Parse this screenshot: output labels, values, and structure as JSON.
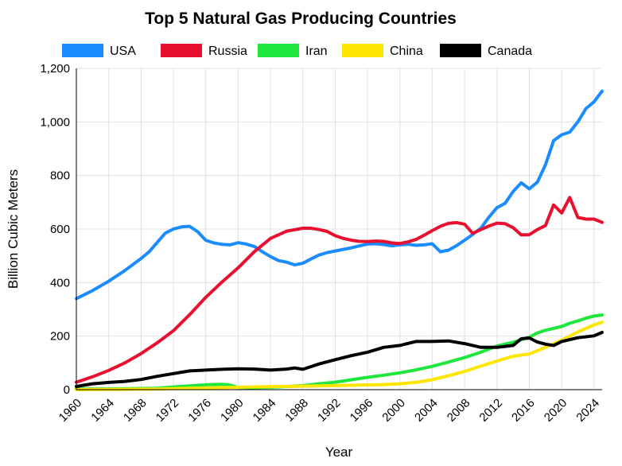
{
  "chart_data": {
    "type": "line",
    "title": "Top 5 Natural Gas Producing Countries",
    "xlabel": "Year",
    "ylabel": "Billion Cubic Meters",
    "xlim": [
      1960,
      2025
    ],
    "ylim": [
      0,
      1200
    ],
    "x_ticks": [
      1960,
      1964,
      1968,
      1972,
      1976,
      1980,
      1984,
      1988,
      1992,
      1996,
      2000,
      2004,
      2008,
      2012,
      2016,
      2020,
      2024
    ],
    "y_ticks": [
      0,
      200,
      400,
      600,
      800,
      1000,
      1200
    ],
    "y_tick_labels": [
      "0",
      "200",
      "400",
      "600",
      "800",
      "1,000",
      "1,200"
    ],
    "grid": true,
    "legend_position": "top",
    "series": [
      {
        "name": "USA",
        "color": "#1a8cff",
        "points": [
          [
            1960,
            340
          ],
          [
            1962,
            370
          ],
          [
            1964,
            405
          ],
          [
            1966,
            445
          ],
          [
            1968,
            490
          ],
          [
            1969,
            515
          ],
          [
            1970,
            550
          ],
          [
            1971,
            585
          ],
          [
            1972,
            600
          ],
          [
            1973,
            608
          ],
          [
            1974,
            610
          ],
          [
            1975,
            590
          ],
          [
            1976,
            558
          ],
          [
            1977,
            548
          ],
          [
            1978,
            543
          ],
          [
            1979,
            541
          ],
          [
            1980,
            549
          ],
          [
            1981,
            544
          ],
          [
            1982,
            535
          ],
          [
            1983,
            515
          ],
          [
            1984,
            497
          ],
          [
            1985,
            482
          ],
          [
            1986,
            476
          ],
          [
            1987,
            466
          ],
          [
            1988,
            472
          ],
          [
            1989,
            488
          ],
          [
            1990,
            503
          ],
          [
            1991,
            512
          ],
          [
            1992,
            518
          ],
          [
            1993,
            524
          ],
          [
            1994,
            530
          ],
          [
            1995,
            537
          ],
          [
            1996,
            544
          ],
          [
            1997,
            545
          ],
          [
            1998,
            542
          ],
          [
            1999,
            537
          ],
          [
            2000,
            541
          ],
          [
            2001,
            543
          ],
          [
            2002,
            539
          ],
          [
            2003,
            541
          ],
          [
            2004,
            545
          ],
          [
            2005,
            515
          ],
          [
            2006,
            521
          ],
          [
            2007,
            538
          ],
          [
            2008,
            558
          ],
          [
            2009,
            580
          ],
          [
            2010,
            603
          ],
          [
            2011,
            644
          ],
          [
            2012,
            680
          ],
          [
            2013,
            696
          ],
          [
            2014,
            740
          ],
          [
            2015,
            773
          ],
          [
            2016,
            750
          ],
          [
            2017,
            775
          ],
          [
            2018,
            840
          ],
          [
            2019,
            930
          ],
          [
            2020,
            952
          ],
          [
            2021,
            962
          ],
          [
            2022,
            1000
          ],
          [
            2023,
            1050
          ],
          [
            2024,
            1075
          ],
          [
            2025,
            1115
          ]
        ]
      },
      {
        "name": "Russia",
        "color": "#e8102e",
        "points": [
          [
            1960,
            28
          ],
          [
            1962,
            48
          ],
          [
            1964,
            72
          ],
          [
            1966,
            100
          ],
          [
            1968,
            135
          ],
          [
            1970,
            175
          ],
          [
            1972,
            220
          ],
          [
            1974,
            280
          ],
          [
            1976,
            345
          ],
          [
            1978,
            402
          ],
          [
            1980,
            455
          ],
          [
            1982,
            515
          ],
          [
            1984,
            565
          ],
          [
            1986,
            592
          ],
          [
            1988,
            603
          ],
          [
            1989,
            603
          ],
          [
            1990,
            598
          ],
          [
            1991,
            591
          ],
          [
            1992,
            575
          ],
          [
            1993,
            565
          ],
          [
            1994,
            558
          ],
          [
            1995,
            554
          ],
          [
            1996,
            553
          ],
          [
            1997,
            555
          ],
          [
            1998,
            554
          ],
          [
            1999,
            548
          ],
          [
            2000,
            546
          ],
          [
            2001,
            552
          ],
          [
            2002,
            561
          ],
          [
            2003,
            577
          ],
          [
            2004,
            594
          ],
          [
            2005,
            610
          ],
          [
            2006,
            621
          ],
          [
            2007,
            624
          ],
          [
            2008,
            618
          ],
          [
            2009,
            584
          ],
          [
            2010,
            598
          ],
          [
            2011,
            611
          ],
          [
            2012,
            622
          ],
          [
            2013,
            620
          ],
          [
            2014,
            605
          ],
          [
            2015,
            578
          ],
          [
            2016,
            579
          ],
          [
            2017,
            598
          ],
          [
            2018,
            613
          ],
          [
            2019,
            690
          ],
          [
            2020,
            660
          ],
          [
            2021,
            718
          ],
          [
            2022,
            643
          ],
          [
            2023,
            637
          ],
          [
            2024,
            637
          ],
          [
            2025,
            625
          ]
        ]
      },
      {
        "name": "Iran",
        "color": "#1fe63c",
        "points": [
          [
            1960,
            2
          ],
          [
            1965,
            3
          ],
          [
            1970,
            5
          ],
          [
            1972,
            10
          ],
          [
            1974,
            14
          ],
          [
            1976,
            18
          ],
          [
            1978,
            20
          ],
          [
            1979,
            17
          ],
          [
            1980,
            8
          ],
          [
            1982,
            7
          ],
          [
            1985,
            10
          ],
          [
            1988,
            15
          ],
          [
            1990,
            22
          ],
          [
            1992,
            28
          ],
          [
            1994,
            37
          ],
          [
            1996,
            46
          ],
          [
            1998,
            54
          ],
          [
            2000,
            63
          ],
          [
            2002,
            74
          ],
          [
            2004,
            87
          ],
          [
            2006,
            103
          ],
          [
            2008,
            120
          ],
          [
            2010,
            140
          ],
          [
            2012,
            163
          ],
          [
            2014,
            177
          ],
          [
            2016,
            196
          ],
          [
            2017,
            212
          ],
          [
            2018,
            222
          ],
          [
            2020,
            236
          ],
          [
            2021,
            248
          ],
          [
            2022,
            257
          ],
          [
            2023,
            267
          ],
          [
            2024,
            275
          ],
          [
            2025,
            279
          ]
        ]
      },
      {
        "name": "China",
        "color": "#ffe600",
        "points": [
          [
            1960,
            0
          ],
          [
            1970,
            2
          ],
          [
            1975,
            6
          ],
          [
            1980,
            9
          ],
          [
            1985,
            12
          ],
          [
            1990,
            14
          ],
          [
            1995,
            17
          ],
          [
            1998,
            19
          ],
          [
            2000,
            22
          ],
          [
            2002,
            27
          ],
          [
            2004,
            37
          ],
          [
            2006,
            52
          ],
          [
            2008,
            68
          ],
          [
            2010,
            88
          ],
          [
            2012,
            107
          ],
          [
            2014,
            125
          ],
          [
            2016,
            133
          ],
          [
            2018,
            158
          ],
          [
            2020,
            185
          ],
          [
            2022,
            215
          ],
          [
            2024,
            242
          ],
          [
            2025,
            252
          ]
        ]
      },
      {
        "name": "Canada",
        "color": "#000000",
        "points": [
          [
            1960,
            12
          ],
          [
            1962,
            22
          ],
          [
            1964,
            27
          ],
          [
            1966,
            31
          ],
          [
            1968,
            38
          ],
          [
            1970,
            50
          ],
          [
            1972,
            60
          ],
          [
            1974,
            70
          ],
          [
            1976,
            73
          ],
          [
            1978,
            76
          ],
          [
            1980,
            78
          ],
          [
            1982,
            77
          ],
          [
            1984,
            73
          ],
          [
            1986,
            77
          ],
          [
            1987,
            81
          ],
          [
            1988,
            76
          ],
          [
            1990,
            96
          ],
          [
            1992,
            112
          ],
          [
            1994,
            127
          ],
          [
            1996,
            140
          ],
          [
            1998,
            158
          ],
          [
            2000,
            165
          ],
          [
            2002,
            180
          ],
          [
            2004,
            180
          ],
          [
            2006,
            182
          ],
          [
            2008,
            172
          ],
          [
            2010,
            158
          ],
          [
            2012,
            158
          ],
          [
            2014,
            165
          ],
          [
            2015,
            190
          ],
          [
            2016,
            193
          ],
          [
            2017,
            178
          ],
          [
            2018,
            170
          ],
          [
            2019,
            165
          ],
          [
            2020,
            180
          ],
          [
            2022,
            194
          ],
          [
            2024,
            201
          ],
          [
            2025,
            214
          ]
        ]
      }
    ]
  }
}
